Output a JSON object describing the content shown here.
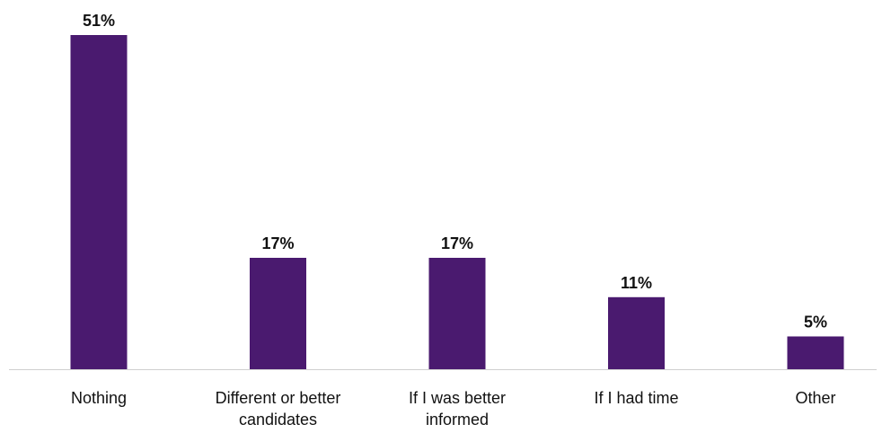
{
  "chart_data": {
    "type": "bar",
    "categories": [
      "Nothing",
      "Different or better candidates",
      "If I was better informed",
      "If I had time",
      "Other"
    ],
    "category_lines": [
      [
        "Nothing"
      ],
      [
        "Different or better",
        "candidates"
      ],
      [
        "If I was better",
        "informed"
      ],
      [
        "If I had time"
      ],
      [
        "Other"
      ]
    ],
    "values": [
      51,
      17,
      17,
      11,
      5
    ],
    "value_labels": [
      "51%",
      "17%",
      "17%",
      "11%",
      "5%"
    ],
    "title": "",
    "xlabel": "",
    "ylabel": "",
    "ylim": [
      0,
      51
    ],
    "grid": false,
    "legend": "none",
    "bar_color": "#4a1a6f",
    "axis_color": "#d0d0d0",
    "text_color": "#111111"
  }
}
